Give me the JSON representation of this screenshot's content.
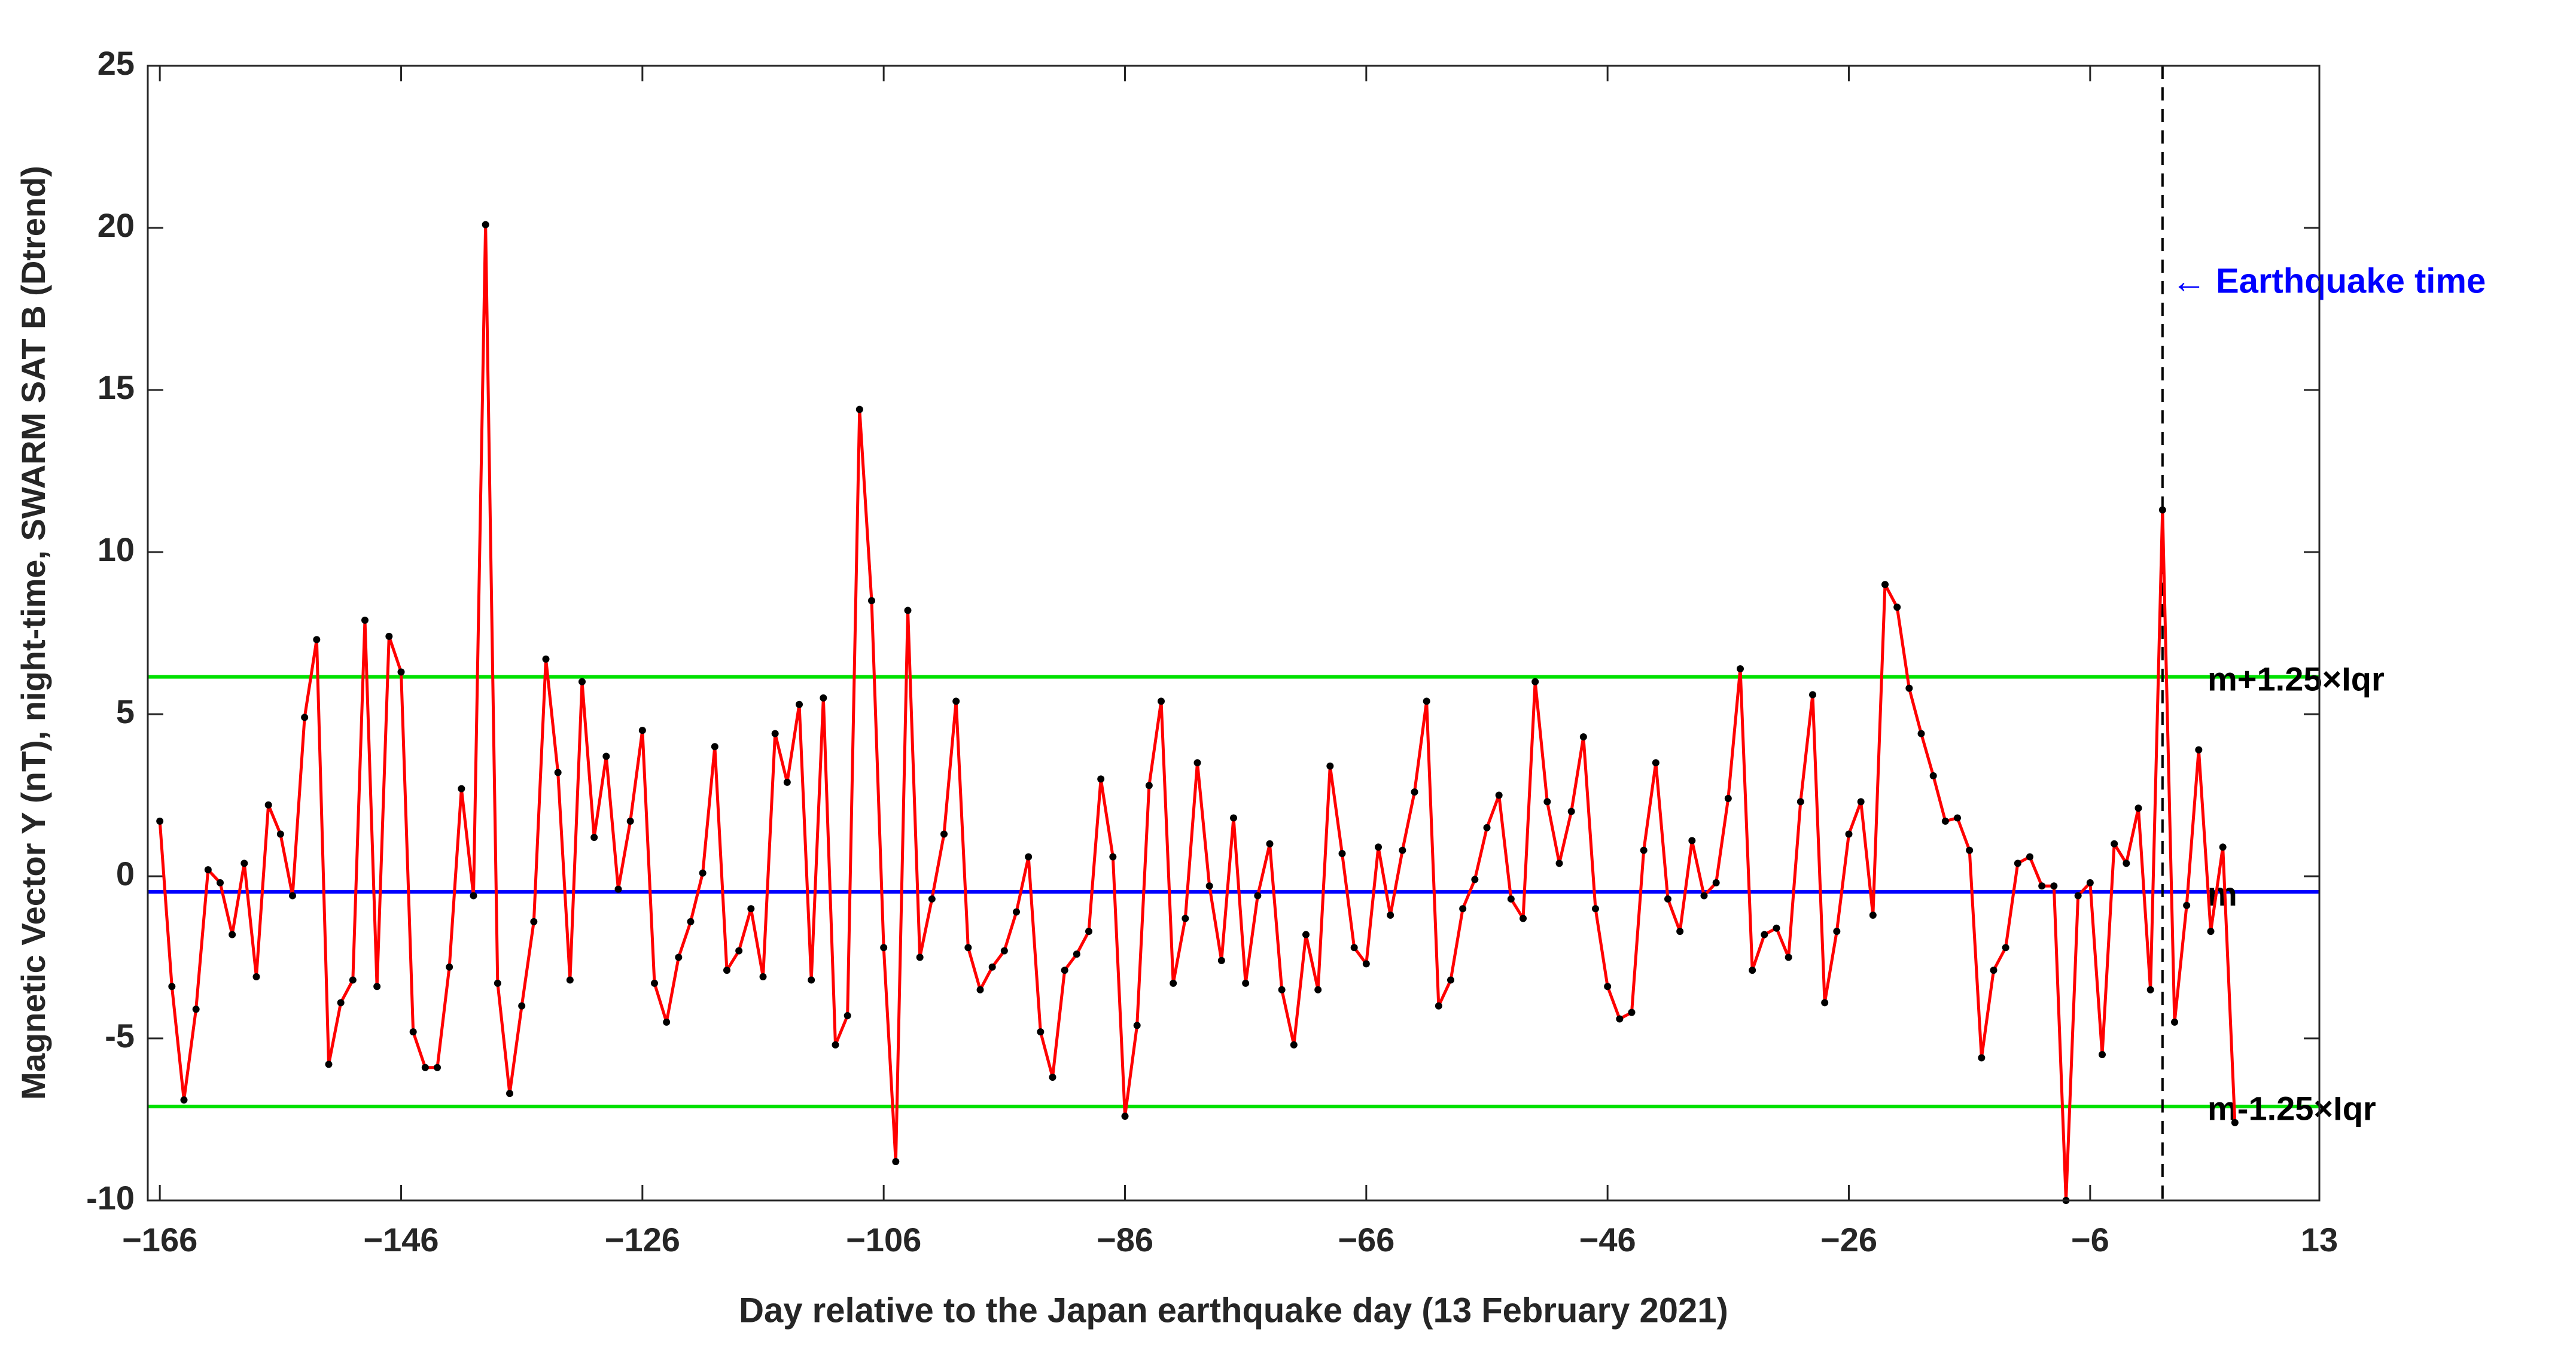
{
  "chart_data": {
    "type": "line",
    "ylabel": "Magnetic Vector Y (nT), night-time, SWARM SAT B (Dtrend)",
    "xlabel": "Day relative to the Japan earthquake day (13 February 2021)",
    "x": [
      -166,
      -165,
      -164,
      -163,
      -162,
      -161,
      -160,
      -159,
      -158,
      -157,
      -156,
      -155,
      -154,
      -153,
      -152,
      -151,
      -150,
      -149,
      -148,
      -147,
      -146,
      -145,
      -144,
      -143,
      -142,
      -141,
      -140,
      -139,
      -138,
      -137,
      -136,
      -135,
      -134,
      -133,
      -132,
      -131,
      -130,
      -129,
      -128,
      -127,
      -126,
      -125,
      -124,
      -123,
      -122,
      -121,
      -120,
      -119,
      -118,
      -117,
      -116,
      -115,
      -114,
      -113,
      -112,
      -111,
      -110,
      -109,
      -108,
      -107,
      -106,
      -105,
      -104,
      -103,
      -102,
      -101,
      -100,
      -99,
      -98,
      -97,
      -96,
      -95,
      -94,
      -93,
      -92,
      -91,
      -90,
      -89,
      -88,
      -87,
      -86,
      -85,
      -84,
      -83,
      -82,
      -81,
      -80,
      -79,
      -78,
      -77,
      -76,
      -75,
      -74,
      -73,
      -72,
      -71,
      -70,
      -69,
      -68,
      -67,
      -66,
      -65,
      -64,
      -63,
      -62,
      -61,
      -60,
      -59,
      -58,
      -57,
      -56,
      -55,
      -54,
      -53,
      -52,
      -51,
      -50,
      -49,
      -48,
      -47,
      -46,
      -45,
      -44,
      -43,
      -42,
      -41,
      -40,
      -39,
      -38,
      -37,
      -36,
      -35,
      -34,
      -33,
      -32,
      -31,
      -30,
      -29,
      -28,
      -27,
      -26,
      -25,
      -24,
      -23,
      -22,
      -21,
      -20,
      -19,
      -18,
      -17,
      -16,
      -15,
      -14,
      -13,
      -12,
      -11,
      -10,
      -9,
      -8,
      -7,
      -6,
      -5,
      -4,
      -3,
      -2,
      -1,
      0,
      1,
      2,
      3,
      4,
      5,
      6
    ],
    "series": [
      {
        "name": "Magnetic Vector Y",
        "color": "#ff0000",
        "marker_color": "#000000",
        "values": [
          1.7,
          -3.4,
          -6.9,
          -4.1,
          0.2,
          -0.2,
          -1.8,
          0.4,
          -3.1,
          2.2,
          1.3,
          -0.6,
          4.9,
          7.3,
          -5.8,
          -3.9,
          -3.2,
          7.9,
          -3.4,
          7.4,
          6.3,
          -4.8,
          -5.9,
          -5.9,
          -2.8,
          2.7,
          -0.6,
          20.1,
          -3.3,
          -6.7,
          -4.0,
          -1.4,
          6.7,
          3.2,
          -3.2,
          6.0,
          1.2,
          3.7,
          -0.4,
          1.7,
          4.5,
          -3.3,
          -4.5,
          -2.5,
          -1.4,
          0.1,
          4.0,
          -2.9,
          -2.3,
          -1.0,
          -3.1,
          4.4,
          2.9,
          5.3,
          -3.2,
          5.5,
          -5.2,
          -4.3,
          14.4,
          8.5,
          -2.2,
          -8.8,
          8.2,
          -2.5,
          -0.7,
          1.3,
          5.4,
          -2.2,
          -3.5,
          -2.8,
          -2.3,
          -1.1,
          0.6,
          -4.8,
          -6.2,
          -2.9,
          -2.4,
          -1.7,
          3.0,
          0.6,
          -7.4,
          -4.6,
          2.8,
          5.4,
          -3.3,
          -1.3,
          3.5,
          -0.3,
          -2.6,
          1.8,
          -3.3,
          -0.6,
          1.0,
          -3.5,
          -5.2,
          -1.8,
          -3.5,
          3.4,
          0.7,
          -2.2,
          -2.7,
          0.9,
          -1.2,
          0.8,
          2.6,
          5.4,
          -4.0,
          -3.2,
          -1.0,
          -0.1,
          1.5,
          2.5,
          -0.7,
          -1.3,
          6.0,
          2.3,
          0.4,
          2.0,
          4.3,
          -1.0,
          -3.4,
          -4.4,
          -4.2,
          0.8,
          3.5,
          -0.7,
          -1.7,
          1.1,
          -0.6,
          -0.2,
          2.4,
          6.4,
          -2.9,
          -1.8,
          -1.6,
          -2.5,
          2.3,
          5.6,
          -3.9,
          -1.7,
          1.3,
          2.3,
          -1.2,
          9.0,
          8.3,
          5.8,
          4.4,
          3.1,
          1.7,
          1.8,
          0.8,
          -5.6,
          -2.9,
          -2.2,
          0.4,
          0.6,
          -0.3,
          -0.3,
          -10.0,
          -0.6,
          -0.2,
          -5.5,
          1.0,
          0.4,
          2.1,
          -3.5,
          11.3,
          -4.5,
          -0.9,
          3.9,
          -1.7,
          0.9,
          -7.6
        ]
      }
    ],
    "hlines": [
      {
        "name": "m+1.25×Iqr",
        "value": 6.15,
        "color": "#00e000"
      },
      {
        "name": "m",
        "value": -0.48,
        "color": "#0000ff"
      },
      {
        "name": "m-1.25×Iqr",
        "value": -7.1,
        "color": "#00e000"
      }
    ],
    "event": {
      "x": 0,
      "label": "←  Earthquake time",
      "color": "#0000ff"
    },
    "xlim": [
      -167,
      13
    ],
    "xticks": [
      {
        "value": -166,
        "label": "−166"
      },
      {
        "value": -146,
        "label": "−146"
      },
      {
        "value": -126,
        "label": "−126"
      },
      {
        "value": -106,
        "label": "−106"
      },
      {
        "value": -86,
        "label": "−86"
      },
      {
        "value": -66,
        "label": "−66"
      },
      {
        "value": -46,
        "label": "−46"
      },
      {
        "value": -26,
        "label": "−26"
      },
      {
        "value": -6,
        "label": "−6"
      },
      13
    ],
    "ylim": [
      -10,
      25
    ],
    "yticks": [
      {
        "value": -10,
        "label": "-10"
      },
      {
        "value": -5,
        "label": "-5"
      },
      0,
      5,
      10,
      15,
      20,
      25
    ]
  }
}
